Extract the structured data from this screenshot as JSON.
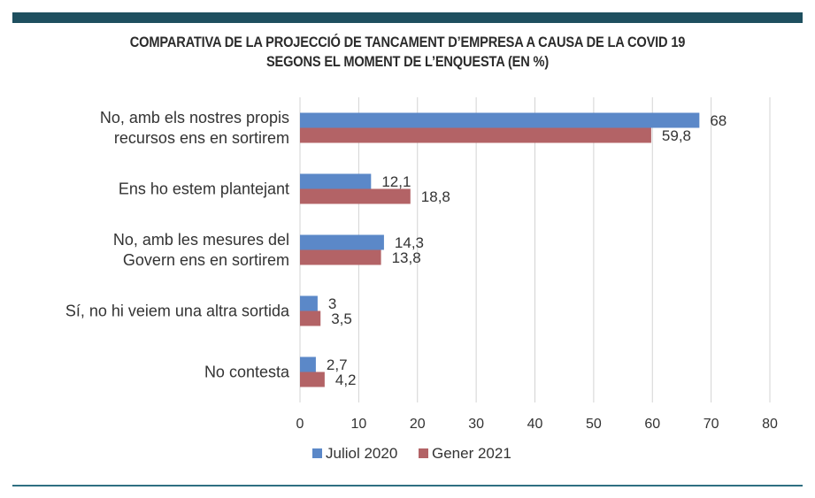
{
  "title_line1": "COMPARATIVA DE LA PROJECCIÓ DE TANCAMENT D’EMPRESA A CAUSA DE LA COVID 19",
  "title_line2": "SEGONS EL MOMENT DE L’ENQUESTA (EN %)",
  "colors": {
    "series1": "#5b88c8",
    "series2": "#b36366",
    "grid": "#d3d3d3",
    "top_bar": "#1e4f5f",
    "bottom_rule": "#2f6f82"
  },
  "chart_data": {
    "type": "bar",
    "orientation": "horizontal",
    "categories": [
      [
        "No, amb els nostres propis",
        "recursos ens en sortirem"
      ],
      [
        "Ens ho estem plantejant"
      ],
      [
        "No, amb les mesures del",
        "Govern ens en sortirem"
      ],
      [
        "Sí, no hi veiem una altra sortida"
      ],
      [
        "No contesta"
      ]
    ],
    "series": [
      {
        "name": "Juliol 2020",
        "values": [
          68,
          12.1,
          14.3,
          3,
          2.7
        ],
        "labels": [
          "68",
          "12,1",
          "14,3",
          "3",
          "2,7"
        ]
      },
      {
        "name": "Gener 2021",
        "values": [
          59.8,
          18.8,
          13.8,
          3.5,
          4.2
        ],
        "labels": [
          "59,8",
          "18,8",
          "13,8",
          "3,5",
          "4,2"
        ]
      }
    ],
    "xlim": [
      0,
      80
    ],
    "xticks": [
      0,
      10,
      20,
      30,
      40,
      50,
      60,
      70,
      80
    ],
    "grid": true,
    "legend_position": "bottom"
  }
}
